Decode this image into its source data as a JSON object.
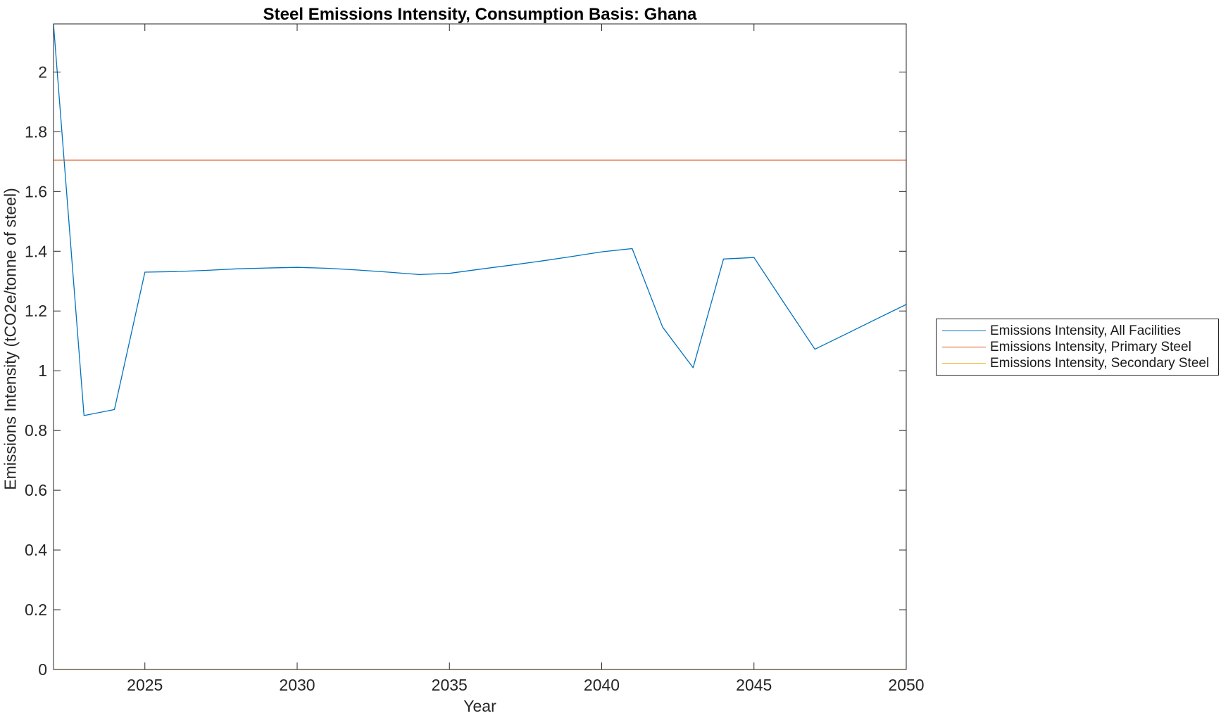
{
  "title": "Steel Emissions Intensity, Consumption Basis: Ghana",
  "axis_labels": {
    "x": "Year",
    "y": "Emissions Intensity (tCO2e/tonne of steel)"
  },
  "colors": {
    "all_facilities": "#0072BD",
    "primary_steel": "#D95319",
    "secondary_steel": "#EDB120",
    "axis": "#262626"
  },
  "legend": {
    "entries": [
      {
        "label": "Emissions Intensity, All Facilities",
        "color": "#0072BD"
      },
      {
        "label": "Emissions Intensity, Primary Steel",
        "color": "#D95319"
      },
      {
        "label": "Emissions Intensity, Secondary Steel",
        "color": "#EDB120"
      }
    ]
  },
  "axes": {
    "xlim": [
      2022,
      2050
    ],
    "ylim": [
      0,
      2.161
    ],
    "xticks": [
      2025,
      2030,
      2035,
      2040,
      2045,
      2050
    ],
    "xtick_labels": [
      "2025",
      "2030",
      "2035",
      "2040",
      "2045",
      "2050"
    ],
    "yticks": [
      0,
      0.2,
      0.4,
      0.6,
      0.8,
      1.0,
      1.2,
      1.4,
      1.6,
      1.8,
      2.0
    ],
    "ytick_labels": [
      "0",
      "0.2",
      "0.4",
      "0.6",
      "0.8",
      "1",
      "1.2",
      "1.4",
      "1.6",
      "1.8",
      "2"
    ]
  },
  "chart_data": {
    "type": "line",
    "title": "Steel Emissions Intensity, Consumption Basis: Ghana",
    "xlabel": "Year",
    "ylabel": "Emissions Intensity (tCO2e/tonne of steel)",
    "xlim": [
      2022,
      2050
    ],
    "ylim": [
      0,
      2.161
    ],
    "grid": false,
    "legend_position": "right-outside",
    "x": [
      2022,
      2023,
      2024,
      2025,
      2026,
      2027,
      2028,
      2029,
      2030,
      2031,
      2032,
      2033,
      2034,
      2035,
      2036,
      2037,
      2038,
      2039,
      2040,
      2041,
      2042,
      2043,
      2044,
      2045,
      2046,
      2047,
      2048,
      2049,
      2050
    ],
    "series": [
      {
        "name": "Emissions Intensity, All Facilities",
        "color": "#0072BD",
        "values": [
          2.16,
          0.85,
          0.87,
          1.33,
          1.332,
          1.336,
          1.341,
          1.344,
          1.346,
          1.343,
          1.337,
          1.33,
          1.322,
          1.326,
          1.34,
          1.353,
          1.367,
          1.382,
          1.398,
          1.409,
          1.146,
          1.01,
          1.374,
          1.379,
          1.225,
          1.072,
          1.122,
          1.172,
          1.222
        ]
      },
      {
        "name": "Emissions Intensity, Primary Steel",
        "color": "#D95319",
        "values": [
          1.705,
          1.705,
          1.705,
          1.705,
          1.705,
          1.705,
          1.705,
          1.705,
          1.705,
          1.705,
          1.705,
          1.705,
          1.705,
          1.705,
          1.705,
          1.705,
          1.705,
          1.705,
          1.705,
          1.705,
          1.705,
          1.705,
          1.705,
          1.705,
          1.705,
          1.705,
          1.705,
          1.705,
          1.705
        ]
      },
      {
        "name": "Emissions Intensity, Secondary Steel",
        "color": "#EDB120",
        "values": [
          0,
          0,
          0,
          0,
          0,
          0,
          0,
          0,
          0,
          0,
          0,
          0,
          0,
          0,
          0,
          0,
          0,
          0,
          0,
          0,
          0,
          0,
          0,
          0,
          0,
          0,
          0,
          0,
          0
        ]
      }
    ]
  }
}
